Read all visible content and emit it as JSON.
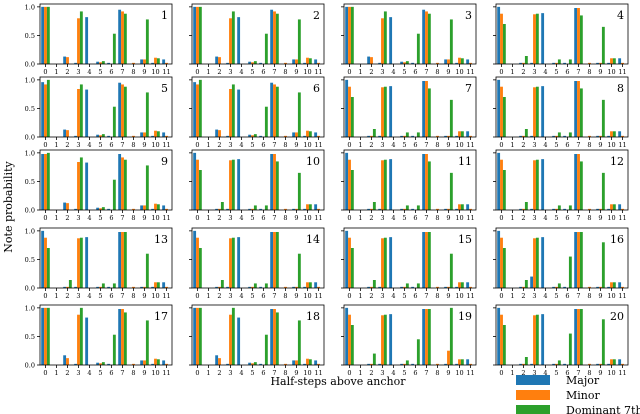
{
  "chart_data": {
    "type": "bar",
    "layout": {
      "rows": 5,
      "cols": 4
    },
    "ylabel": "Note probability",
    "xlabel": "Half-steps above anchor",
    "x_categories": [
      "0",
      "1",
      "2",
      "3",
      "4",
      "5",
      "6",
      "7",
      "8",
      "9",
      "10",
      "11"
    ],
    "yticks": [
      "0.0",
      "0.5",
      "1.0"
    ],
    "ylim": [
      0,
      1.05
    ],
    "grid": false,
    "legend": {
      "placement": "bottom-right",
      "entries": [
        {
          "name": "Major",
          "color": "#1f77b4"
        },
        {
          "name": "Minor",
          "color": "#ff7f0e"
        },
        {
          "name": "Dominant 7th",
          "color": "#2ca02c"
        }
      ]
    },
    "panels": [
      {
        "label": "1",
        "series": {
          "Major": [
            1.0,
            0,
            0.13,
            0.02,
            0.82,
            0.04,
            0.02,
            0.95,
            0,
            0.08,
            0.02,
            0.08
          ],
          "Minor": [
            1.0,
            0,
            0.12,
            0.8,
            0,
            0.03,
            0,
            0.92,
            0.02,
            0.08,
            0.11,
            0.02
          ],
          "Dominant 7th": [
            1.0,
            0,
            0,
            0.92,
            0,
            0.05,
            0.53,
            0.88,
            0,
            0.78,
            0.1,
            0
          ]
        }
      },
      {
        "label": "2",
        "series": {
          "Major": [
            1.0,
            0,
            0.13,
            0.02,
            0.82,
            0.04,
            0.02,
            0.95,
            0,
            0.08,
            0.02,
            0.08
          ],
          "Minor": [
            1.0,
            0,
            0.12,
            0.8,
            0,
            0.03,
            0,
            0.92,
            0.02,
            0.08,
            0.11,
            0.02
          ],
          "Dominant 7th": [
            1.0,
            0,
            0,
            0.92,
            0,
            0.05,
            0.53,
            0.88,
            0,
            0.78,
            0.1,
            0
          ]
        }
      },
      {
        "label": "3",
        "series": {
          "Major": [
            1.0,
            0,
            0.13,
            0.02,
            0.82,
            0.04,
            0.02,
            0.95,
            0,
            0.08,
            0.02,
            0.08
          ],
          "Minor": [
            1.0,
            0,
            0.12,
            0.8,
            0,
            0.03,
            0,
            0.92,
            0.02,
            0.08,
            0.11,
            0.02
          ],
          "Dominant 7th": [
            1.0,
            0,
            0,
            0.92,
            0,
            0.05,
            0.53,
            0.88,
            0,
            0.78,
            0.1,
            0
          ]
        }
      },
      {
        "label": "4",
        "series": {
          "Major": [
            1.0,
            0,
            0.02,
            0.02,
            0.89,
            0.02,
            0.02,
            0.98,
            0,
            0.02,
            0.02,
            0.1
          ],
          "Minor": [
            0.88,
            0,
            0.02,
            0.87,
            0,
            0.02,
            0,
            0.98,
            0.02,
            0.02,
            0.1,
            0.02
          ],
          "Dominant 7th": [
            0.7,
            0,
            0.14,
            0.88,
            0,
            0.08,
            0.08,
            0.85,
            0,
            0.65,
            0.1,
            0
          ]
        }
      },
      {
        "label": "5",
        "series": {
          "Major": [
            0.96,
            0,
            0.13,
            0.02,
            0.83,
            0.04,
            0.02,
            0.95,
            0,
            0.08,
            0.02,
            0.08
          ],
          "Minor": [
            0.92,
            0,
            0.12,
            0.84,
            0,
            0.03,
            0,
            0.92,
            0.02,
            0.08,
            0.11,
            0.02
          ],
          "Dominant 7th": [
            1.0,
            0,
            0,
            0.92,
            0,
            0.05,
            0.53,
            0.88,
            0,
            0.78,
            0.1,
            0
          ]
        }
      },
      {
        "label": "6",
        "series": {
          "Major": [
            0.96,
            0,
            0.13,
            0.02,
            0.83,
            0.04,
            0.02,
            0.95,
            0,
            0.08,
            0.02,
            0.08
          ],
          "Minor": [
            0.92,
            0,
            0.12,
            0.84,
            0,
            0.03,
            0,
            0.92,
            0.02,
            0.08,
            0.11,
            0.02
          ],
          "Dominant 7th": [
            1.0,
            0,
            0,
            0.92,
            0,
            0.05,
            0.53,
            0.88,
            0,
            0.78,
            0.1,
            0
          ]
        }
      },
      {
        "label": "7",
        "series": {
          "Major": [
            1.0,
            0,
            0.02,
            0.02,
            0.89,
            0.02,
            0.02,
            0.98,
            0,
            0.02,
            0.02,
            0.1
          ],
          "Minor": [
            0.88,
            0,
            0.02,
            0.87,
            0,
            0.02,
            0,
            0.98,
            0.02,
            0.02,
            0.1,
            0.02
          ],
          "Dominant 7th": [
            0.7,
            0,
            0.14,
            0.88,
            0,
            0.08,
            0.08,
            0.85,
            0,
            0.65,
            0.1,
            0
          ]
        }
      },
      {
        "label": "8",
        "series": {
          "Major": [
            1.0,
            0,
            0.02,
            0.02,
            0.89,
            0.02,
            0.02,
            0.98,
            0,
            0.02,
            0.02,
            0.1
          ],
          "Minor": [
            0.88,
            0,
            0.02,
            0.87,
            0,
            0.02,
            0,
            0.98,
            0.02,
            0.02,
            0.1,
            0.02
          ],
          "Dominant 7th": [
            0.7,
            0,
            0.14,
            0.88,
            0,
            0.08,
            0.08,
            0.85,
            0,
            0.65,
            0.1,
            0
          ]
        }
      },
      {
        "label": "9",
        "series": {
          "Major": [
            0.98,
            0,
            0.13,
            0.02,
            0.83,
            0.04,
            0.02,
            0.98,
            0,
            0.08,
            0.02,
            0.08
          ],
          "Minor": [
            0.98,
            0,
            0.12,
            0.84,
            0,
            0.03,
            0,
            0.92,
            0.02,
            0.08,
            0.11,
            0.02
          ],
          "Dominant 7th": [
            1.0,
            0,
            0,
            0.92,
            0,
            0.05,
            0.53,
            0.88,
            0,
            0.78,
            0.1,
            0
          ]
        }
      },
      {
        "label": "10",
        "series": {
          "Major": [
            1.0,
            0,
            0.02,
            0.02,
            0.89,
            0.02,
            0.02,
            0.98,
            0,
            0.02,
            0.02,
            0.1
          ],
          "Minor": [
            0.88,
            0,
            0.02,
            0.87,
            0,
            0.02,
            0,
            0.98,
            0.02,
            0.02,
            0.1,
            0.02
          ],
          "Dominant 7th": [
            0.7,
            0,
            0.14,
            0.88,
            0,
            0.08,
            0.08,
            0.85,
            0,
            0.65,
            0.1,
            0
          ]
        }
      },
      {
        "label": "11",
        "series": {
          "Major": [
            1.0,
            0,
            0.02,
            0.02,
            0.89,
            0.02,
            0.02,
            0.98,
            0,
            0.02,
            0.02,
            0.1
          ],
          "Minor": [
            0.88,
            0,
            0.02,
            0.87,
            0,
            0.02,
            0,
            0.98,
            0.02,
            0.02,
            0.1,
            0.02
          ],
          "Dominant 7th": [
            0.7,
            0,
            0.14,
            0.88,
            0,
            0.08,
            0.08,
            0.85,
            0,
            0.65,
            0.1,
            0
          ]
        }
      },
      {
        "label": "12",
        "series": {
          "Major": [
            1.0,
            0,
            0.02,
            0.02,
            0.89,
            0.02,
            0.02,
            0.98,
            0,
            0.02,
            0.02,
            0.1
          ],
          "Minor": [
            0.88,
            0,
            0.02,
            0.87,
            0,
            0.02,
            0,
            0.98,
            0.02,
            0.02,
            0.1,
            0.02
          ],
          "Dominant 7th": [
            0.7,
            0,
            0.14,
            0.88,
            0,
            0.08,
            0.08,
            0.85,
            0,
            0.65,
            0.1,
            0
          ]
        }
      },
      {
        "label": "13",
        "series": {
          "Major": [
            1.0,
            0,
            0.02,
            0.02,
            0.89,
            0.02,
            0.02,
            0.98,
            0,
            0.02,
            0.02,
            0.1
          ],
          "Minor": [
            0.88,
            0,
            0.02,
            0.87,
            0,
            0.02,
            0,
            0.98,
            0.02,
            0.02,
            0.1,
            0.02
          ],
          "Dominant 7th": [
            0.7,
            0,
            0.14,
            0.88,
            0,
            0.08,
            0.08,
            0.98,
            0,
            0.6,
            0.1,
            0
          ]
        }
      },
      {
        "label": "14",
        "series": {
          "Major": [
            1.0,
            0,
            0.02,
            0.02,
            0.89,
            0.02,
            0.02,
            0.98,
            0,
            0.02,
            0.02,
            0.1
          ],
          "Minor": [
            0.88,
            0,
            0.02,
            0.87,
            0,
            0.02,
            0,
            0.98,
            0.02,
            0.02,
            0.1,
            0.02
          ],
          "Dominant 7th": [
            0.7,
            0,
            0.14,
            0.88,
            0,
            0.08,
            0.08,
            0.98,
            0,
            0.6,
            0.1,
            0
          ]
        }
      },
      {
        "label": "15",
        "series": {
          "Major": [
            1.0,
            0,
            0.02,
            0.02,
            0.89,
            0.02,
            0.02,
            0.98,
            0,
            0.02,
            0.02,
            0.1
          ],
          "Minor": [
            0.88,
            0,
            0.02,
            0.87,
            0,
            0.02,
            0,
            0.98,
            0.02,
            0.02,
            0.1,
            0.02
          ],
          "Dominant 7th": [
            0.7,
            0,
            0.14,
            0.88,
            0,
            0.08,
            0.08,
            0.98,
            0,
            0.6,
            0.1,
            0
          ]
        }
      },
      {
        "label": "16",
        "series": {
          "Major": [
            1.0,
            0,
            0.02,
            0.2,
            0.89,
            0.02,
            0.02,
            0.98,
            0,
            0.02,
            0.02,
            0.1
          ],
          "Minor": [
            0.88,
            0,
            0.02,
            0.87,
            0,
            0.02,
            0,
            0.98,
            0.02,
            0.02,
            0.1,
            0.02
          ],
          "Dominant 7th": [
            0.7,
            0,
            0.14,
            0.88,
            0,
            0.08,
            0.55,
            0.98,
            0,
            0.8,
            0.1,
            0
          ]
        }
      },
      {
        "label": "17",
        "series": {
          "Major": [
            1.0,
            0,
            0.17,
            0.02,
            0.83,
            0.04,
            0.02,
            0.98,
            0,
            0.08,
            0.02,
            0.08
          ],
          "Minor": [
            1.0,
            0,
            0.12,
            0.88,
            0,
            0.03,
            0,
            0.98,
            0.02,
            0.08,
            0.11,
            0.02
          ],
          "Dominant 7th": [
            1.0,
            0,
            0,
            1.0,
            0,
            0.05,
            0.53,
            0.92,
            0,
            0.78,
            0.1,
            0
          ]
        }
      },
      {
        "label": "18",
        "series": {
          "Major": [
            1.0,
            0,
            0.17,
            0.02,
            0.83,
            0.04,
            0.02,
            0.98,
            0,
            0.08,
            0.02,
            0.08
          ],
          "Minor": [
            1.0,
            0,
            0.12,
            0.88,
            0,
            0.03,
            0,
            0.98,
            0.02,
            0.08,
            0.11,
            0.02
          ],
          "Dominant 7th": [
            1.0,
            0,
            0,
            1.0,
            0,
            0.05,
            0.53,
            0.92,
            0,
            0.78,
            0.1,
            0
          ]
        }
      },
      {
        "label": "19",
        "series": {
          "Major": [
            1.0,
            0,
            0.02,
            0.02,
            0.89,
            0.02,
            0.02,
            0.98,
            0,
            0.02,
            0.02,
            0.1
          ],
          "Minor": [
            0.88,
            0,
            0.02,
            0.87,
            0,
            0.02,
            0,
            0.98,
            0.02,
            0.25,
            0.1,
            0.02
          ],
          "Dominant 7th": [
            0.7,
            0,
            0.2,
            0.88,
            0,
            0.08,
            0.45,
            0.98,
            0,
            1.0,
            0.1,
            0
          ]
        }
      },
      {
        "label": "20",
        "series": {
          "Major": [
            1.0,
            0,
            0.02,
            0.02,
            0.89,
            0.02,
            0.02,
            0.98,
            0,
            0.02,
            0.02,
            0.1
          ],
          "Minor": [
            0.88,
            0,
            0.02,
            0.87,
            0,
            0.02,
            0,
            0.98,
            0.02,
            0.02,
            0.1,
            0.02
          ],
          "Dominant 7th": [
            0.7,
            0,
            0.14,
            0.88,
            0,
            0.08,
            0.55,
            0.98,
            0,
            0.8,
            0.1,
            0
          ]
        }
      }
    ]
  }
}
